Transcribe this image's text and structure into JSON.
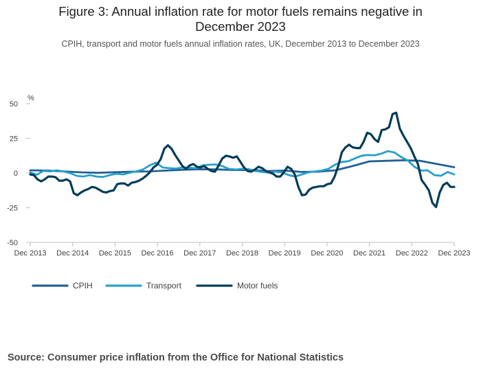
{
  "title_line1": "Figure 3: Annual inflation rate for motor fuels remains negative in",
  "title_line2": "December 2023",
  "subtitle": "CPIH, transport and motor fuels annual inflation rates, UK, December 2013 to December 2023",
  "source": "Source: Consumer price inflation from the Office for National Statistics",
  "chart_data": {
    "type": "line",
    "title": "Figure 3: Annual inflation rate for motor fuels remains negative in December 2023",
    "xlabel": "",
    "ylabel": "%",
    "ylim": [
      -50,
      50
    ],
    "yticks": [
      50,
      25,
      0,
      -25,
      -50
    ],
    "ytick_labels": [
      "50",
      "25",
      "0",
      "-25",
      "-50"
    ],
    "x_tick_labels": [
      "Dec 2013",
      "Dec 2014",
      "Dec 2015",
      "Dec 2016",
      "Dec 2017",
      "Dec 2018",
      "Dec 2019",
      "Dec 2020",
      "Dec 2021",
      "Dec 2022",
      "Dec 2023"
    ],
    "x_start": 0,
    "x_end": 120,
    "legend_position": "bottom-left",
    "grid": false,
    "series": [
      {
        "name": "CPIH",
        "color": "#206095",
        "points": [
          [
            0,
            2.0
          ],
          [
            6,
            1.8
          ],
          [
            12,
            1.2
          ],
          [
            18,
            0.5
          ],
          [
            24,
            0.2
          ],
          [
            30,
            0.6
          ],
          [
            36,
            1.0
          ],
          [
            42,
            1.2
          ],
          [
            48,
            1.8
          ],
          [
            54,
            2.4
          ],
          [
            60,
            2.7
          ],
          [
            66,
            2.6
          ],
          [
            72,
            2.2
          ],
          [
            78,
            2.2
          ],
          [
            84,
            1.4
          ],
          [
            90,
            1.8
          ],
          [
            96,
            0.8
          ],
          [
            102,
            1.0
          ],
          [
            108,
            2.0
          ],
          [
            114,
            5.0
          ],
          [
            120,
            8.4
          ],
          [
            126,
            8.8
          ],
          [
            132,
            9.2
          ],
          [
            138,
            8.8
          ],
          [
            144,
            6.5
          ],
          [
            150,
            4.2
          ]
        ],
        "x_scale": 0.8
      },
      {
        "name": "Transport",
        "color": "#27a0cc",
        "points": [
          [
            0,
            0.5
          ],
          [
            2,
            -1.2
          ],
          [
            4,
            1.6
          ],
          [
            6,
            1.2
          ],
          [
            8,
            2.0
          ],
          [
            10,
            1.2
          ],
          [
            12,
            0.0
          ],
          [
            14,
            -2.0
          ],
          [
            16,
            -2.5
          ],
          [
            18,
            -1.5
          ],
          [
            20,
            -2.5
          ],
          [
            22,
            -2.8
          ],
          [
            24,
            -1.5
          ],
          [
            26,
            -0.5
          ],
          [
            28,
            -1.0
          ],
          [
            30,
            0.2
          ],
          [
            32,
            1.2
          ],
          [
            34,
            2.5
          ],
          [
            36,
            5.5
          ],
          [
            38,
            7.5
          ],
          [
            40,
            4.0
          ],
          [
            42,
            3.5
          ],
          [
            44,
            3.2
          ],
          [
            46,
            4.0
          ],
          [
            48,
            3.8
          ],
          [
            50,
            3.5
          ],
          [
            52,
            5.5
          ],
          [
            54,
            6.0
          ],
          [
            56,
            6.2
          ],
          [
            58,
            5.0
          ],
          [
            60,
            3.0
          ],
          [
            62,
            2.5
          ],
          [
            64,
            3.0
          ],
          [
            66,
            2.8
          ],
          [
            68,
            1.5
          ],
          [
            70,
            0.8
          ],
          [
            72,
            0.3
          ],
          [
            74,
            1.0
          ],
          [
            76,
            0.5
          ],
          [
            78,
            -1.5
          ],
          [
            80,
            -2.5
          ],
          [
            82,
            -1.0
          ],
          [
            84,
            0.5
          ],
          [
            86,
            1.2
          ],
          [
            88,
            1.8
          ],
          [
            90,
            3.0
          ],
          [
            92,
            6.0
          ],
          [
            94,
            8.0
          ],
          [
            96,
            8.5
          ],
          [
            98,
            10.5
          ],
          [
            100,
            12.5
          ],
          [
            102,
            13.0
          ],
          [
            104,
            12.8
          ],
          [
            106,
            14.0
          ],
          [
            108,
            15.8
          ],
          [
            110,
            14.8
          ],
          [
            112,
            11.5
          ],
          [
            114,
            9.0
          ],
          [
            116,
            4.5
          ],
          [
            118,
            1.8
          ],
          [
            120,
            2.0
          ],
          [
            122,
            -1.5
          ],
          [
            124,
            -2.0
          ],
          [
            126,
            0.8
          ],
          [
            128,
            -1.0
          ]
        ],
        "x_scale": 0.9375
      },
      {
        "name": "Motor fuels",
        "color": "#003c57",
        "points": [
          [
            0,
            -1.0
          ],
          [
            1,
            -1.5
          ],
          [
            2,
            -4.5
          ],
          [
            3,
            -6.0
          ],
          [
            4,
            -4.5
          ],
          [
            5,
            -2.5
          ],
          [
            6,
            -2.5
          ],
          [
            7,
            -3.0
          ],
          [
            8,
            -5.5
          ],
          [
            9,
            -5.5
          ],
          [
            10,
            -4.5
          ],
          [
            11,
            -6.0
          ],
          [
            12,
            -14.5
          ],
          [
            13,
            -16.0
          ],
          [
            14,
            -14.0
          ],
          [
            15,
            -12.5
          ],
          [
            16,
            -11.5
          ],
          [
            17,
            -10.0
          ],
          [
            18,
            -10.5
          ],
          [
            19,
            -12.0
          ],
          [
            20,
            -13.5
          ],
          [
            21,
            -14.0
          ],
          [
            22,
            -13.0
          ],
          [
            23,
            -12.5
          ],
          [
            24,
            -8.0
          ],
          [
            25,
            -7.5
          ],
          [
            26,
            -7.5
          ],
          [
            27,
            -9.0
          ],
          [
            28,
            -7.0
          ],
          [
            29,
            -6.5
          ],
          [
            30,
            -5.5
          ],
          [
            31,
            -4.0
          ],
          [
            32,
            -2.0
          ],
          [
            33,
            0.5
          ],
          [
            34,
            4.0
          ],
          [
            35,
            6.0
          ],
          [
            36,
            10.0
          ],
          [
            37,
            17.5
          ],
          [
            38,
            20.0
          ],
          [
            39,
            17.5
          ],
          [
            40,
            13.0
          ],
          [
            41,
            9.0
          ],
          [
            42,
            5.0
          ],
          [
            43,
            3.0
          ],
          [
            44,
            5.5
          ],
          [
            45,
            6.5
          ],
          [
            46,
            4.5
          ],
          [
            47,
            4.0
          ],
          [
            48,
            5.0
          ],
          [
            49,
            3.0
          ],
          [
            50,
            1.5
          ],
          [
            51,
            1.0
          ],
          [
            52,
            5.5
          ],
          [
            53,
            10.5
          ],
          [
            54,
            12.5
          ],
          [
            55,
            12.0
          ],
          [
            56,
            11.0
          ],
          [
            57,
            12.0
          ],
          [
            58,
            8.0
          ],
          [
            59,
            4.0
          ],
          [
            60,
            1.5
          ],
          [
            61,
            1.0
          ],
          [
            62,
            2.5
          ],
          [
            63,
            4.5
          ],
          [
            64,
            3.5
          ],
          [
            65,
            1.5
          ],
          [
            66,
            0.5
          ],
          [
            67,
            -0.5
          ],
          [
            68,
            -2.5
          ],
          [
            69,
            -2.5
          ],
          [
            70,
            0.5
          ],
          [
            71,
            4.5
          ],
          [
            72,
            3.0
          ],
          [
            73,
            -1.0
          ],
          [
            74,
            -10.0
          ],
          [
            75,
            -16.0
          ],
          [
            76,
            -15.5
          ],
          [
            77,
            -12.0
          ],
          [
            78,
            -10.5
          ],
          [
            79,
            -10.0
          ],
          [
            80,
            -9.5
          ],
          [
            81,
            -9.5
          ],
          [
            82,
            -8.0
          ],
          [
            83,
            -7.5
          ],
          [
            84,
            -2.5
          ],
          [
            85,
            5.0
          ],
          [
            86,
            15.0
          ],
          [
            87,
            18.5
          ],
          [
            88,
            20.5
          ],
          [
            89,
            18.5
          ],
          [
            90,
            18.0
          ],
          [
            91,
            18.0
          ],
          [
            92,
            22.5
          ],
          [
            93,
            29.0
          ],
          [
            94,
            28.0
          ],
          [
            95,
            24.5
          ],
          [
            96,
            22.5
          ],
          [
            97,
            31.0
          ],
          [
            98,
            31.5
          ],
          [
            99,
            33.0
          ],
          [
            100,
            42.5
          ],
          [
            101,
            43.5
          ],
          [
            102,
            32.0
          ],
          [
            103,
            27.0
          ],
          [
            104,
            22.5
          ],
          [
            105,
            18.0
          ],
          [
            106,
            12.0
          ],
          [
            107,
            6.5
          ],
          [
            108,
            -5.0
          ],
          [
            109,
            -8.5
          ],
          [
            110,
            -12.5
          ],
          [
            111,
            -21.5
          ],
          [
            112,
            -24.5
          ],
          [
            113,
            -14.0
          ],
          [
            114,
            -8.5
          ],
          [
            115,
            -7.0
          ],
          [
            116,
            -10.0
          ],
          [
            117,
            -10.0
          ]
        ],
        "x_scale": 1.0256
      }
    ]
  }
}
